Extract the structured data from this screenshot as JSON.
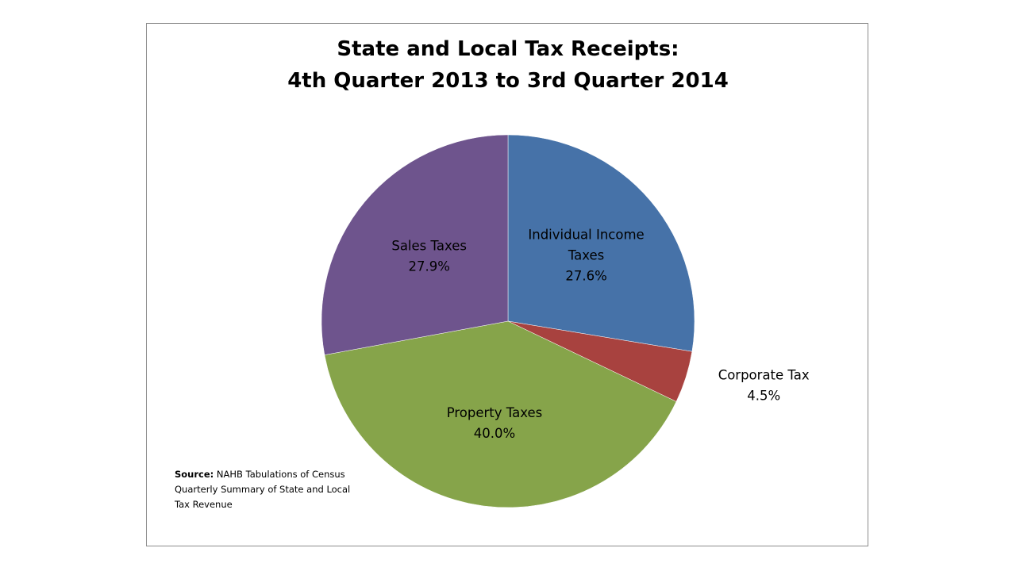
{
  "chart_data": {
    "type": "pie",
    "title": "State and Local Tax Receipts:",
    "subtitle": "4th Quarter 2013 to 3rd Quarter 2014",
    "slices": [
      {
        "label_lines": [
          "Individual Income",
          "Taxes"
        ],
        "value": 27.6,
        "display": "27.6%",
        "color": "#4672A8"
      },
      {
        "label_lines": [
          "Corporate Tax"
        ],
        "value": 4.5,
        "display": "4.5%",
        "color": "#A8423F"
      },
      {
        "label_lines": [
          "Property Taxes"
        ],
        "value": 40.0,
        "display": "40.0%",
        "color": "#86A44A"
      },
      {
        "label_lines": [
          "Sales Taxes"
        ],
        "value": 27.9,
        "display": "27.9%",
        "color": "#6E548D"
      }
    ]
  },
  "source": {
    "label": "Source:",
    "text": "NAHB Tabulations of Census Quarterly Summary of State and Local Tax Revenue"
  }
}
